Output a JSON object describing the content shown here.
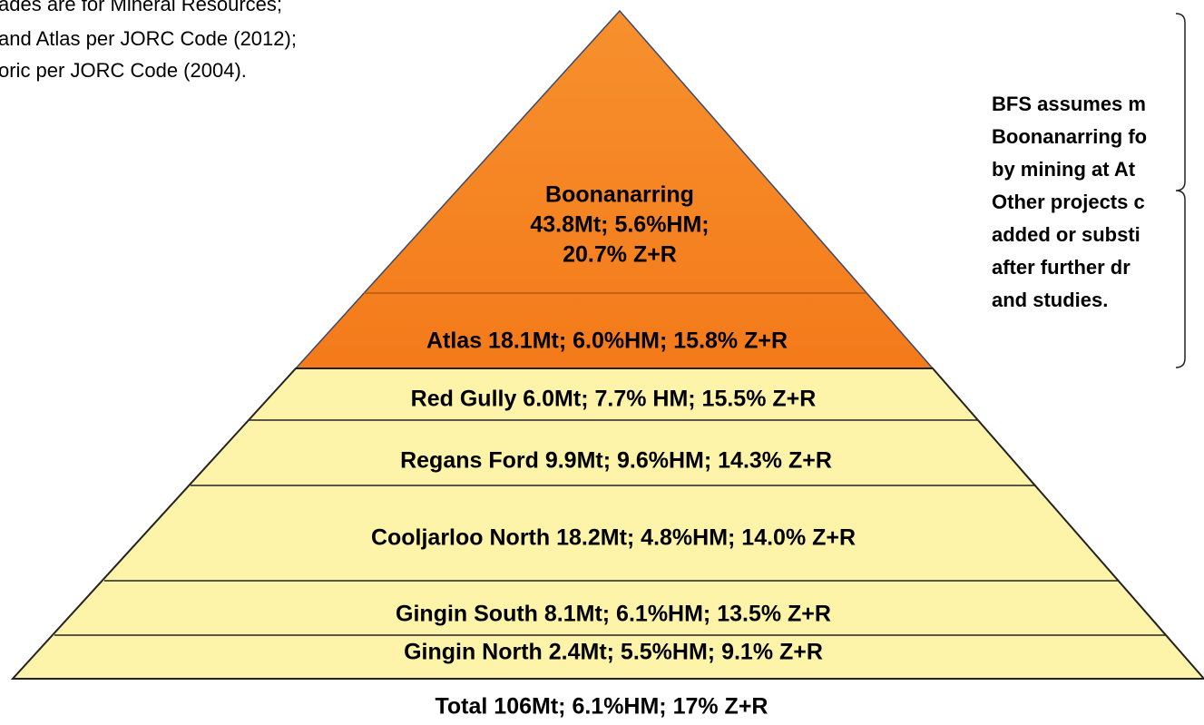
{
  "note": [
    "ades are for Mineral Resources;",
    "and Atlas per JORC Code (2012);",
    "oric per JORC Code (2004)."
  ],
  "layers": [
    {
      "lines": [
        "Boonanarring",
        "43.8Mt; 5.6%HM;",
        "20.7% Z+R"
      ]
    },
    {
      "lines": [
        "Atlas 18.1Mt; 6.0%HM; 15.8% Z+R"
      ]
    },
    {
      "lines": [
        "Red Gully  6.0Mt; 7.7% HM; 15.5% Z+R"
      ]
    },
    {
      "lines": [
        "Regans Ford  9.9Mt; 9.6%HM; 14.3% Z+R"
      ]
    },
    {
      "lines": [
        "Cooljarloo North  18.2Mt; 4.8%HM; 14.0% Z+R"
      ]
    },
    {
      "lines": [
        "Gingin South   8.1Mt; 6.1%HM; 13.5% Z+R"
      ]
    },
    {
      "lines": [
        "Gingin North   2.4Mt; 5.5%HM; 9.1% Z+R"
      ]
    }
  ],
  "total": "Total  106Mt; 6.1%HM; 17% Z+R",
  "side_note": [
    "BFS assumes m",
    "Boonanarring fo",
    "by mining at At",
    "Other projects c",
    "added or substi",
    "after further dr",
    "and studies."
  ]
}
